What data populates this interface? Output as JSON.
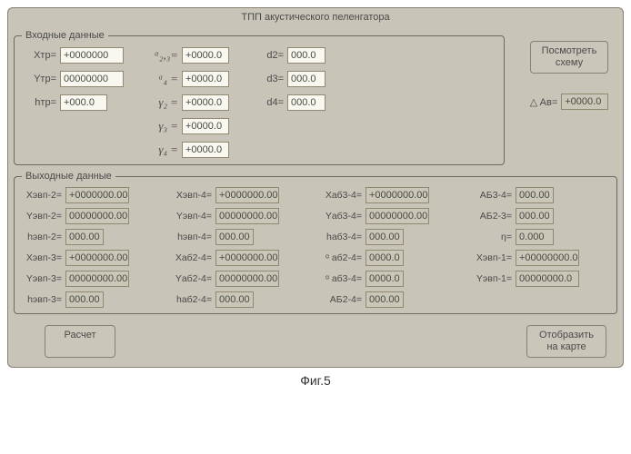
{
  "window": {
    "title": "ТПП акустического пеленгатора"
  },
  "caption": "Фиг.5",
  "group_in": {
    "legend": "Входные данные"
  },
  "group_out": {
    "legend": "Выходные данные"
  },
  "in": {
    "c1": [
      {
        "lbl": "Xтр=",
        "val": "+0000000"
      },
      {
        "lbl": "Yтр=",
        "val": "00000000"
      },
      {
        "lbl": "hтр=",
        "val": "+000.0"
      }
    ],
    "c2": [
      {
        "lbl": "ᵅ₂,₃=",
        "val": "+0000.0"
      },
      {
        "lbl": "ᵅ₄ =",
        "val": "+0000.0"
      },
      {
        "lbl": "γ₂ =",
        "val": "+0000.0"
      },
      {
        "lbl": "γ₃ =",
        "val": "+0000.0"
      },
      {
        "lbl": "γ₄ =",
        "val": "+0000.0"
      }
    ],
    "c3": [
      {
        "lbl": "d2=",
        "val": "000.0"
      },
      {
        "lbl": "d3=",
        "val": "000.0"
      },
      {
        "lbl": "d4=",
        "val": "000.0"
      }
    ]
  },
  "side": {
    "btn": "Посмотреть\nсхему",
    "av_lbl": "△ Aв=",
    "av_val": "+0000.0"
  },
  "out": {
    "r": [
      {
        "l": "Xэвп-2=",
        "v": "+0000000.00"
      },
      {
        "l": "Xэвп-4=",
        "v": "+0000000.00"
      },
      {
        "l": "Xаб3-4=",
        "v": "+0000000.00"
      },
      {
        "l": "АБ3-4=",
        "v": "000.00"
      },
      {
        "l": "Yэвп-2=",
        "v": "00000000.00"
      },
      {
        "l": "Yэвп-4=",
        "v": "00000000.00"
      },
      {
        "l": "Yаб3-4=",
        "v": "00000000.00"
      },
      {
        "l": "АБ2-3=",
        "v": "000.00"
      },
      {
        "l": "hэвп-2=",
        "v": "000.00"
      },
      {
        "l": "hэвп-4=",
        "v": "000.00"
      },
      {
        "l": "hаб3-4=",
        "v": "000.00"
      },
      {
        "l": "η=",
        "v": "0.000"
      },
      {
        "l": "Xэвп-3=",
        "v": "+0000000.00"
      },
      {
        "l": "Xаб2-4=",
        "v": "+0000000.00"
      },
      {
        "l": "ᵅ аб2-4=",
        "v": "0000.0"
      },
      {
        "l": "Xэвп-1=",
        "v": "+00000000.0"
      },
      {
        "l": "Yэвп-3=",
        "v": "00000000.00"
      },
      {
        "l": "Yаб2-4=",
        "v": "00000000.00"
      },
      {
        "l": "ᵅ аб3-4=",
        "v": "0000.0"
      },
      {
        "l": "Yэвп-1=",
        "v": "00000000.0"
      },
      {
        "l": "hэвп-3=",
        "v": "000.00"
      },
      {
        "l": "hаб2-4=",
        "v": "000.00"
      },
      {
        "l": "АБ2-4=",
        "v": "000.00"
      },
      {
        "l": "",
        "v": ""
      }
    ]
  },
  "bottom": {
    "calc": "Расчет",
    "show": "Отобразить\nна карте"
  }
}
